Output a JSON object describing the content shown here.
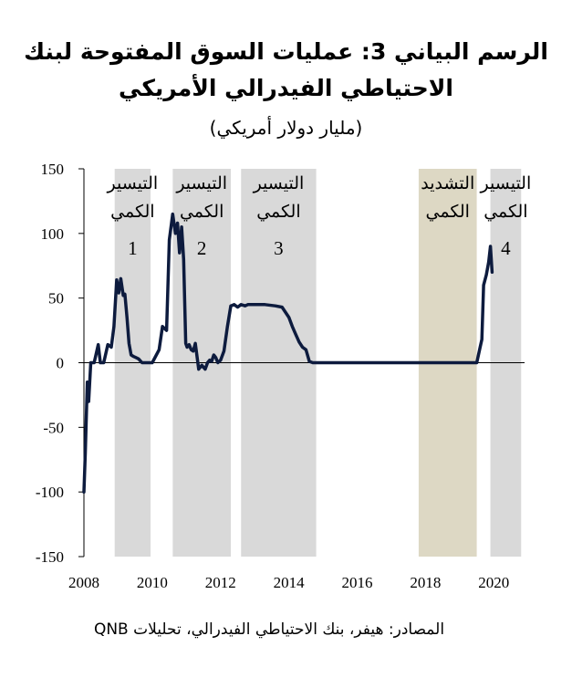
{
  "title_line1": "الرسم البياني 3: عمليات السوق المفتوحة لبنك",
  "title_line2": "الاحتياطي الفيدرالي الأمريكي",
  "subtitle": "(مليار دولار أمريكي)",
  "source": "المصادر: هيفر، بنك الاحتياطي الفيدرالي، تحليلات QNB",
  "chart_data": {
    "type": "line",
    "xlim": [
      2008,
      2020.9
    ],
    "ylim": [
      -150,
      150
    ],
    "x_ticks": [
      "2008",
      "2010",
      "2012",
      "2014",
      "2016",
      "2018",
      "2020"
    ],
    "y_ticks": [
      "150",
      "100",
      "50",
      "0",
      "-50",
      "-100",
      "-150"
    ],
    "grid": false,
    "line_color": "#0d1b3e",
    "bands": [
      {
        "start": 2008.9,
        "end": 2009.95,
        "color": "#d9d9d9",
        "label_line1": "التيسير",
        "label_line2": "الكمي",
        "number": "1"
      },
      {
        "start": 2010.6,
        "end": 2012.3,
        "color": "#d9d9d9",
        "label_line1": "التيسير",
        "label_line2": "الكمي",
        "number": "2"
      },
      {
        "start": 2012.6,
        "end": 2014.8,
        "color": "#d9d9d9",
        "label_line1": "التيسير",
        "label_line2": "الكمي",
        "number": "3"
      },
      {
        "start": 2017.8,
        "end": 2019.5,
        "color": "#ddd8c4",
        "label_line1": "التشديد",
        "label_line2": "الكمي",
        "number": ""
      },
      {
        "start": 2019.9,
        "end": 2020.8,
        "color": "#d9d9d9",
        "label_line1": "التيسير",
        "label_line2": "الكمي",
        "number": "4"
      }
    ],
    "series": [
      {
        "x": [
          2008.0,
          2008.04,
          2008.1,
          2008.14,
          2008.2,
          2008.3,
          2008.42,
          2008.48,
          2008.58,
          2008.7,
          2008.8,
          2008.88,
          2008.96,
          2009.02,
          2009.08,
          2009.15,
          2009.2,
          2009.26,
          2009.32,
          2009.38,
          2009.44,
          2009.52,
          2009.6,
          2009.7,
          2009.85,
          2010.0,
          2010.2,
          2010.3,
          2010.42,
          2010.5,
          2010.6,
          2010.68,
          2010.74,
          2010.8,
          2010.86,
          2010.92,
          2010.98,
          2011.02,
          2011.08,
          2011.14,
          2011.2,
          2011.26,
          2011.36,
          2011.45,
          2011.55,
          2011.62,
          2011.68,
          2011.74,
          2011.8,
          2011.86,
          2011.92,
          2012.0,
          2012.1,
          2012.2,
          2012.3,
          2012.4,
          2012.5,
          2012.6,
          2012.72,
          2012.8,
          2013.0,
          2013.3,
          2013.6,
          2013.8,
          2014.0,
          2014.1,
          2014.2,
          2014.3,
          2014.4,
          2014.5,
          2014.6,
          2014.7,
          2014.8,
          2015.0,
          2016.0,
          2017.0,
          2018.0,
          2019.0,
          2019.5,
          2019.6,
          2019.65,
          2019.7,
          2019.78,
          2019.85,
          2019.9,
          2019.95
        ],
        "y": [
          -100,
          -70,
          -15,
          -30,
          0,
          0,
          14,
          0,
          0,
          14,
          12,
          28,
          64,
          54,
          65,
          52,
          53,
          35,
          15,
          6,
          5,
          4,
          3,
          0,
          0,
          0,
          10,
          28,
          25,
          95,
          115,
          100,
          108,
          85,
          105,
          80,
          15,
          12,
          14,
          10,
          9,
          15,
          -5,
          -2,
          -5,
          0,
          2,
          1,
          6,
          4,
          0,
          2,
          9,
          28,
          44,
          45,
          43,
          45,
          44,
          45,
          45,
          45,
          44,
          43,
          35,
          28,
          22,
          16,
          12,
          10,
          1,
          0,
          0,
          0,
          0,
          0,
          0,
          0,
          0,
          12,
          18,
          60,
          68,
          78,
          90,
          70
        ]
      }
    ]
  }
}
